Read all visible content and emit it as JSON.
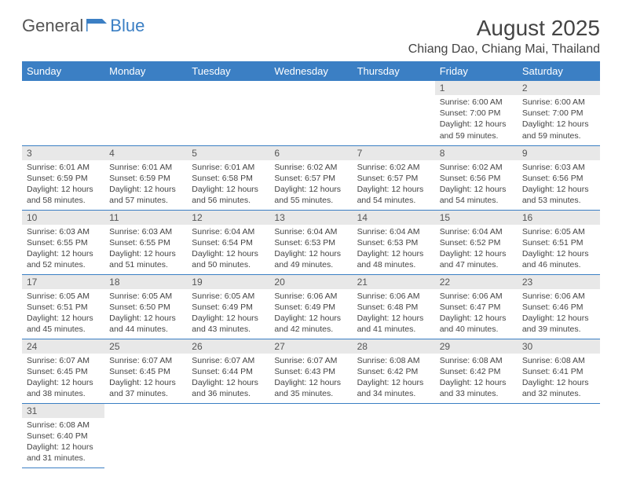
{
  "brand": {
    "name1": "General",
    "name2": "Blue"
  },
  "title": "August 2025",
  "location": "Chiang Dao, Chiang Mai, Thailand",
  "colors": {
    "header_bg": "#3b7fc4",
    "header_text": "#ffffff",
    "daynum_bg": "#e8e8e8",
    "row_border": "#3b7fc4",
    "text": "#444444",
    "background": "#ffffff"
  },
  "typography": {
    "title_fontsize": 28,
    "location_fontsize": 16,
    "dayheader_fontsize": 13,
    "cell_fontsize": 10.5
  },
  "weekdays": [
    "Sunday",
    "Monday",
    "Tuesday",
    "Wednesday",
    "Thursday",
    "Friday",
    "Saturday"
  ],
  "calendar": {
    "type": "table",
    "columns": 7,
    "first_weekday_index": 5,
    "days": [
      {
        "n": 1,
        "sunrise": "6:00 AM",
        "sunset": "7:00 PM",
        "dl": "12 hours and 59 minutes."
      },
      {
        "n": 2,
        "sunrise": "6:00 AM",
        "sunset": "7:00 PM",
        "dl": "12 hours and 59 minutes."
      },
      {
        "n": 3,
        "sunrise": "6:01 AM",
        "sunset": "6:59 PM",
        "dl": "12 hours and 58 minutes."
      },
      {
        "n": 4,
        "sunrise": "6:01 AM",
        "sunset": "6:59 PM",
        "dl": "12 hours and 57 minutes."
      },
      {
        "n": 5,
        "sunrise": "6:01 AM",
        "sunset": "6:58 PM",
        "dl": "12 hours and 56 minutes."
      },
      {
        "n": 6,
        "sunrise": "6:02 AM",
        "sunset": "6:57 PM",
        "dl": "12 hours and 55 minutes."
      },
      {
        "n": 7,
        "sunrise": "6:02 AM",
        "sunset": "6:57 PM",
        "dl": "12 hours and 54 minutes."
      },
      {
        "n": 8,
        "sunrise": "6:02 AM",
        "sunset": "6:56 PM",
        "dl": "12 hours and 54 minutes."
      },
      {
        "n": 9,
        "sunrise": "6:03 AM",
        "sunset": "6:56 PM",
        "dl": "12 hours and 53 minutes."
      },
      {
        "n": 10,
        "sunrise": "6:03 AM",
        "sunset": "6:55 PM",
        "dl": "12 hours and 52 minutes."
      },
      {
        "n": 11,
        "sunrise": "6:03 AM",
        "sunset": "6:55 PM",
        "dl": "12 hours and 51 minutes."
      },
      {
        "n": 12,
        "sunrise": "6:04 AM",
        "sunset": "6:54 PM",
        "dl": "12 hours and 50 minutes."
      },
      {
        "n": 13,
        "sunrise": "6:04 AM",
        "sunset": "6:53 PM",
        "dl": "12 hours and 49 minutes."
      },
      {
        "n": 14,
        "sunrise": "6:04 AM",
        "sunset": "6:53 PM",
        "dl": "12 hours and 48 minutes."
      },
      {
        "n": 15,
        "sunrise": "6:04 AM",
        "sunset": "6:52 PM",
        "dl": "12 hours and 47 minutes."
      },
      {
        "n": 16,
        "sunrise": "6:05 AM",
        "sunset": "6:51 PM",
        "dl": "12 hours and 46 minutes."
      },
      {
        "n": 17,
        "sunrise": "6:05 AM",
        "sunset": "6:51 PM",
        "dl": "12 hours and 45 minutes."
      },
      {
        "n": 18,
        "sunrise": "6:05 AM",
        "sunset": "6:50 PM",
        "dl": "12 hours and 44 minutes."
      },
      {
        "n": 19,
        "sunrise": "6:05 AM",
        "sunset": "6:49 PM",
        "dl": "12 hours and 43 minutes."
      },
      {
        "n": 20,
        "sunrise": "6:06 AM",
        "sunset": "6:49 PM",
        "dl": "12 hours and 42 minutes."
      },
      {
        "n": 21,
        "sunrise": "6:06 AM",
        "sunset": "6:48 PM",
        "dl": "12 hours and 41 minutes."
      },
      {
        "n": 22,
        "sunrise": "6:06 AM",
        "sunset": "6:47 PM",
        "dl": "12 hours and 40 minutes."
      },
      {
        "n": 23,
        "sunrise": "6:06 AM",
        "sunset": "6:46 PM",
        "dl": "12 hours and 39 minutes."
      },
      {
        "n": 24,
        "sunrise": "6:07 AM",
        "sunset": "6:45 PM",
        "dl": "12 hours and 38 minutes."
      },
      {
        "n": 25,
        "sunrise": "6:07 AM",
        "sunset": "6:45 PM",
        "dl": "12 hours and 37 minutes."
      },
      {
        "n": 26,
        "sunrise": "6:07 AM",
        "sunset": "6:44 PM",
        "dl": "12 hours and 36 minutes."
      },
      {
        "n": 27,
        "sunrise": "6:07 AM",
        "sunset": "6:43 PM",
        "dl": "12 hours and 35 minutes."
      },
      {
        "n": 28,
        "sunrise": "6:08 AM",
        "sunset": "6:42 PM",
        "dl": "12 hours and 34 minutes."
      },
      {
        "n": 29,
        "sunrise": "6:08 AM",
        "sunset": "6:42 PM",
        "dl": "12 hours and 33 minutes."
      },
      {
        "n": 30,
        "sunrise": "6:08 AM",
        "sunset": "6:41 PM",
        "dl": "12 hours and 32 minutes."
      },
      {
        "n": 31,
        "sunrise": "6:08 AM",
        "sunset": "6:40 PM",
        "dl": "12 hours and 31 minutes."
      }
    ]
  },
  "labels": {
    "sunrise": "Sunrise:",
    "sunset": "Sunset:",
    "daylight": "Daylight:"
  }
}
